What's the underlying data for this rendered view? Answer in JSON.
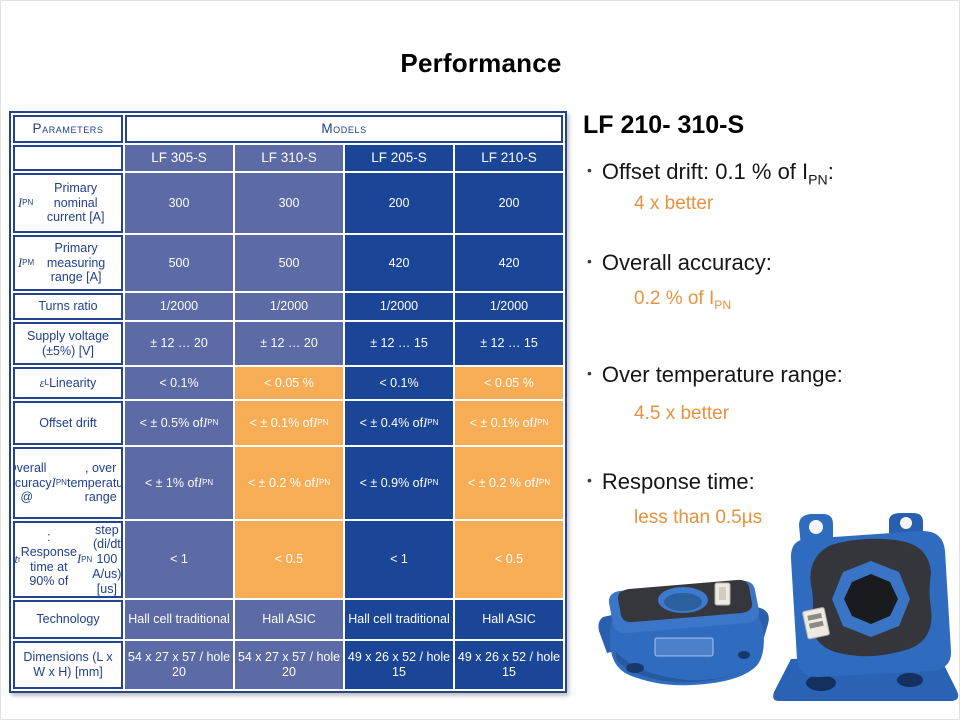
{
  "slide": {
    "title": "Performance"
  },
  "colors": {
    "navy_cell": "#1b4697",
    "slate_cell": "#5c6aa5",
    "orange_cell": "#f7ac56",
    "orange_cell_text": "#1c3a6e",
    "table_border": "#24448f",
    "label_text": "#1f3f8f",
    "accent_orange": "#e8923f",
    "product_blue": "#2f6cc0"
  },
  "table": {
    "parameters_header": "Parameters",
    "models_header": "Models",
    "models": [
      {
        "name": "LF 305-S",
        "bg": "slate"
      },
      {
        "name": "LF 310-S",
        "bg": "slate"
      },
      {
        "name": "LF 205-S",
        "bg": "navy"
      },
      {
        "name": "LF 210-S",
        "bg": "navy"
      }
    ],
    "rows": [
      {
        "param": "*I*~PN~ Primary nominal current [A]",
        "cells": [
          {
            "text": "300",
            "bg": "slate"
          },
          {
            "text": "300",
            "bg": "slate"
          },
          {
            "text": "200",
            "bg": "navy"
          },
          {
            "text": "200",
            "bg": "navy"
          }
        ]
      },
      {
        "param": "*I*~PM~ Primary measuring range [A]",
        "cells": [
          {
            "text": "500",
            "bg": "slate"
          },
          {
            "text": "500",
            "bg": "slate"
          },
          {
            "text": "420",
            "bg": "navy"
          },
          {
            "text": "420",
            "bg": "navy"
          }
        ]
      },
      {
        "param": "Turns ratio",
        "cells": [
          {
            "text": "1/2000",
            "bg": "slate"
          },
          {
            "text": "1/2000",
            "bg": "slate"
          },
          {
            "text": "1/2000",
            "bg": "navy"
          },
          {
            "text": "1/2000",
            "bg": "navy"
          }
        ]
      },
      {
        "param": "Supply voltage (±5%) [V]",
        "cells": [
          {
            "text": "± 12 … 20",
            "bg": "slate"
          },
          {
            "text": "± 12 … 20",
            "bg": "slate"
          },
          {
            "text": "± 12 … 15",
            "bg": "navy"
          },
          {
            "text": "± 12 … 15",
            "bg": "navy"
          }
        ]
      },
      {
        "param": "*ε*~L~ Linearity",
        "cells": [
          {
            "text": "< 0.1%",
            "bg": "slate"
          },
          {
            "text": "< 0.05 %",
            "bg": "orange"
          },
          {
            "text": "< 0.1%",
            "bg": "navy"
          },
          {
            "text": "< 0.05 %",
            "bg": "orange"
          }
        ]
      },
      {
        "param": "Offset drift",
        "cells": [
          {
            "text": "< ± 0.5% of *I*~PN~",
            "bg": "slate"
          },
          {
            "text": "< ± 0.1% of *I*~PN~",
            "bg": "orange"
          },
          {
            "text": "< ± 0.4% of *I*~PN~",
            "bg": "navy"
          },
          {
            "text": "< ± 0.1% of *I*~PN~",
            "bg": "orange"
          }
        ]
      },
      {
        "param": "Overall accuracy @ *I*~PN~, over temperature range",
        "cells": [
          {
            "text": "< ± 1% of *I*~PN~",
            "bg": "slate"
          },
          {
            "text": "< ± 0.2 % of *I*~PN~",
            "bg": "orange"
          },
          {
            "text": "< ± 0.9% of *I*~PN~",
            "bg": "navy"
          },
          {
            "text": "< ± 0.2 % of *I*~PN~",
            "bg": "orange"
          }
        ]
      },
      {
        "param": "*t*~r~: Response time at 90% of *I*~PN~ step (di/dt 100 A/us) [us]",
        "cells": [
          {
            "text": "< 1",
            "bg": "slate"
          },
          {
            "text": "< 0.5",
            "bg": "orange"
          },
          {
            "text": "< 1",
            "bg": "navy"
          },
          {
            "text": "< 0.5",
            "bg": "orange"
          }
        ]
      },
      {
        "param": "Technology",
        "cells": [
          {
            "text": "Hall cell traditional",
            "bg": "slate"
          },
          {
            "text": "Hall ASIC",
            "bg": "slate"
          },
          {
            "text": "Hall cell traditional",
            "bg": "navy"
          },
          {
            "text": "Hall ASIC",
            "bg": "navy"
          }
        ]
      },
      {
        "param": "Dimensions (L x W x H) [mm]",
        "cells": [
          {
            "text": "54 x 27 x 57 / hole 20",
            "bg": "slate"
          },
          {
            "text": "54 x 27 x 57 / hole 20",
            "bg": "slate"
          },
          {
            "text": "49 x 26 x 52 / hole 15",
            "bg": "navy"
          },
          {
            "text": "49 x 26 x 52 / hole 15",
            "bg": "navy"
          }
        ]
      }
    ]
  },
  "panel": {
    "heading": "LF 210- 310-S",
    "bullets": [
      {
        "text": "Offset drift: 0.1 % of I~PN~:",
        "detail": "4 x better"
      },
      {
        "text": "Overall accuracy:",
        "detail": "0.2 % of I~PN~"
      },
      {
        "text": "Over temperature range:",
        "detail": "4.5 x better"
      },
      {
        "text": "Response time:",
        "detail": "less than 0.5µs"
      }
    ]
  },
  "products": {
    "flat_alt": "LF current transducer, flat view",
    "upright_alt": "LF current transducer, upright view"
  }
}
